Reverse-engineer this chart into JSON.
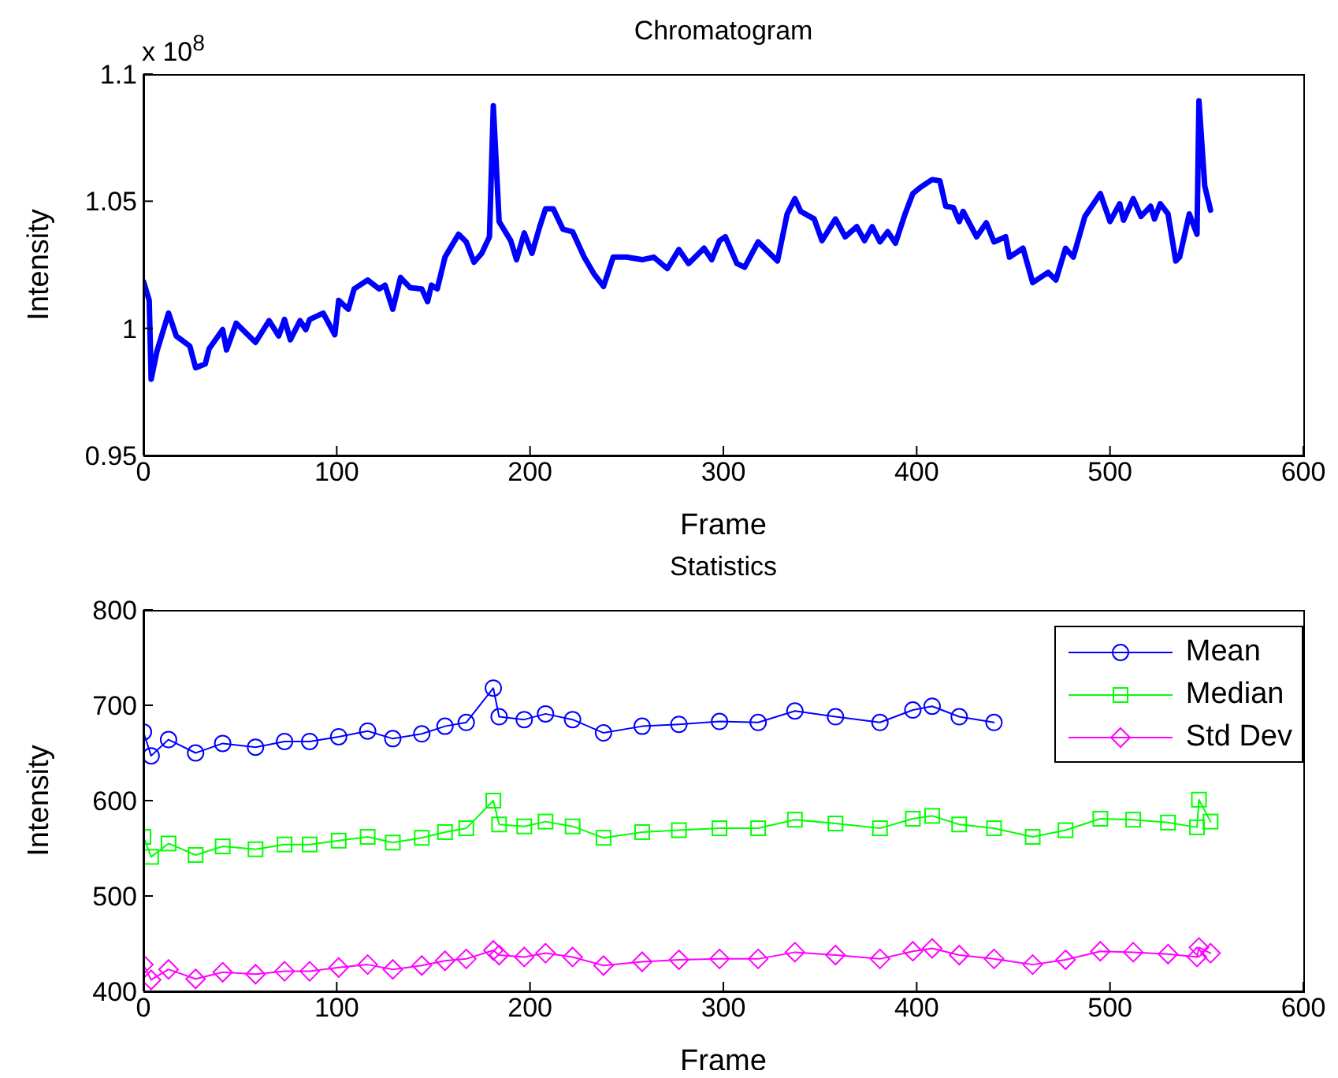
{
  "chart_data": [
    {
      "type": "line",
      "title": "Chromatogram",
      "xlabel": "Frame",
      "ylabel": "Intensity",
      "annotations": [
        "x 10$^{8}$"
      ],
      "xlim": [
        0,
        600
      ],
      "xticks": [
        0,
        100,
        200,
        300,
        400,
        500,
        600
      ],
      "ylim": [
        0.95,
        1.1
      ],
      "yticks": [
        0.95,
        1,
        1.05,
        1.1
      ],
      "marker": "none",
      "series": [
        {
          "color": "#0000ff",
          "x": [
            0,
            3,
            4,
            7,
            13,
            17,
            24,
            27,
            32,
            34,
            41,
            43,
            48,
            58,
            65,
            70,
            73,
            76,
            81,
            84,
            86,
            93,
            99,
            101,
            106,
            109,
            116,
            122,
            125,
            129,
            133,
            138,
            144,
            147,
            149,
            152,
            156,
            163,
            167,
            171,
            175,
            179,
            181,
            184,
            190,
            193,
            197,
            201,
            205,
            208,
            212,
            217,
            222,
            228,
            233,
            238,
            243,
            250,
            258,
            264,
            271,
            277,
            282,
            290,
            294,
            298,
            301,
            307,
            311,
            318,
            328,
            333,
            337,
            340,
            347,
            351,
            358,
            363,
            369,
            373,
            377,
            381,
            385,
            389,
            394,
            398,
            402,
            408,
            412,
            415,
            419,
            422,
            424,
            431,
            436,
            440,
            446,
            448,
            455,
            460,
            468,
            472,
            477,
            481,
            487,
            495,
            500,
            505,
            507,
            512,
            516,
            521,
            523,
            526,
            530,
            534,
            536,
            541,
            545,
            546,
            549,
            552
          ],
          "values": [
            1.0185,
            1.011,
            0.98,
            0.991,
            1.006,
            0.997,
            0.993,
            0.9845,
            0.986,
            0.992,
            0.9995,
            0.9915,
            1.002,
            0.9945,
            1.003,
            0.997,
            1.0035,
            0.9955,
            1.003,
            0.9995,
            1.0035,
            1.006,
            0.9975,
            1.011,
            1.0075,
            1.0155,
            1.019,
            1.0155,
            1.017,
            1.0075,
            1.02,
            1.016,
            1.0155,
            1.0105,
            1.017,
            1.0155,
            1.028,
            1.037,
            1.034,
            1.026,
            1.0295,
            1.036,
            1.0875,
            1.042,
            1.0345,
            1.027,
            1.0375,
            1.0295,
            1.04,
            1.047,
            1.047,
            1.039,
            1.038,
            1.028,
            1.0215,
            1.0165,
            1.028,
            1.028,
            1.027,
            1.028,
            1.0235,
            1.031,
            1.0255,
            1.0315,
            1.027,
            1.0345,
            1.036,
            1.0255,
            1.024,
            1.034,
            1.0265,
            1.045,
            1.051,
            1.046,
            1.043,
            1.0345,
            1.043,
            1.036,
            1.04,
            1.0345,
            1.04,
            1.034,
            1.038,
            1.0335,
            1.045,
            1.053,
            1.0555,
            1.0585,
            1.058,
            1.048,
            1.0475,
            1.042,
            1.046,
            1.036,
            1.0415,
            1.034,
            1.036,
            1.028,
            1.0315,
            1.018,
            1.022,
            1.019,
            1.0315,
            1.028,
            1.044,
            1.053,
            1.042,
            1.049,
            1.0425,
            1.051,
            1.044,
            1.048,
            1.043,
            1.049,
            1.045,
            1.0265,
            1.028,
            1.045,
            1.037,
            1.0895,
            1.056,
            1.0465
          ]
        }
      ]
    },
    {
      "type": "line",
      "title": "Statistics",
      "xlabel": "Frame",
      "ylabel": "Intensity",
      "xlim": [
        0,
        600
      ],
      "xticks": [
        0,
        100,
        200,
        300,
        400,
        500,
        600
      ],
      "ylim": [
        400,
        800
      ],
      "yticks": [
        400,
        500,
        600,
        700,
        800
      ],
      "legend": "top right",
      "x": [
        0,
        4,
        13,
        27,
        41,
        58,
        73,
        86,
        101,
        116,
        129,
        144,
        156,
        167,
        181,
        184,
        197,
        208,
        222,
        238,
        258,
        277,
        298,
        318,
        337,
        358,
        381,
        398,
        408,
        422,
        440,
        460,
        477,
        495,
        512,
        530,
        545,
        546,
        552
      ],
      "series": [
        {
          "name": "Mean",
          "color": "#0000ff",
          "marker": "circle",
          "values": [
            672,
            647,
            664,
            650,
            660,
            656,
            662,
            662,
            667,
            673,
            665,
            670,
            678,
            682,
            718,
            688,
            685,
            691,
            685,
            671,
            678,
            680,
            683,
            682,
            694,
            688,
            682,
            695,
            699,
            688,
            682,
            null,
            null,
            null,
            null,
            null,
            null,
            null,
            null
          ]
        },
        {
          "name": "Median",
          "color": "#00ff00",
          "marker": "square",
          "values": [
            562,
            541,
            555,
            543,
            552,
            549,
            554,
            554,
            558,
            562,
            556,
            561,
            567,
            571,
            600,
            575,
            573,
            578,
            573,
            561,
            567,
            569,
            571,
            571,
            580,
            576,
            571,
            581,
            584,
            575,
            571,
            562,
            569,
            581,
            580,
            577,
            572,
            601,
            578
          ]
        },
        {
          "name": "Std Dev",
          "color": "#ff00ff",
          "marker": "diamond",
          "values": [
            428,
            412,
            423,
            413,
            420,
            418,
            421,
            421,
            425,
            428,
            423,
            427,
            432,
            434,
            443,
            438,
            436,
            440,
            436,
            427,
            431,
            433,
            434,
            434,
            441,
            438,
            434,
            442,
            445,
            438,
            434,
            428,
            433,
            442,
            441,
            439,
            436,
            446,
            440
          ]
        }
      ]
    }
  ]
}
